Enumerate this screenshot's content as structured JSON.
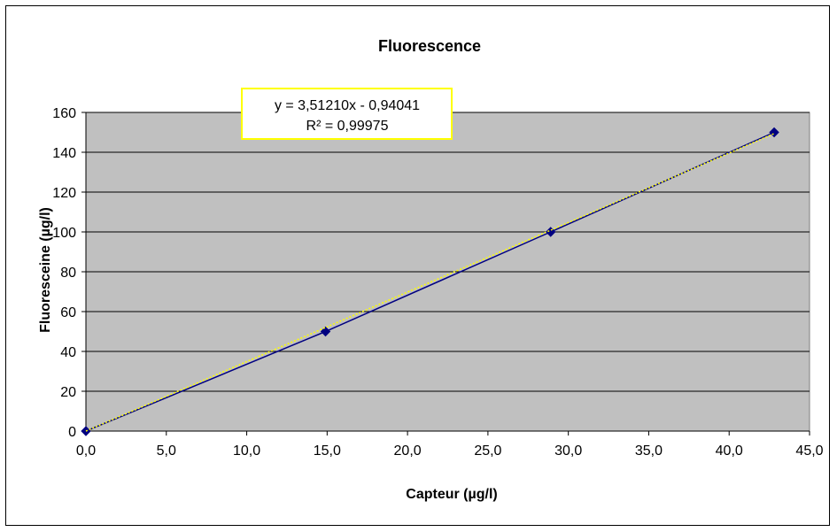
{
  "chart_data": {
    "type": "scatter",
    "title": "Fluorescence",
    "xlabel": "Capteur (µg/l)",
    "ylabel": "Fluoresceine (µg/l)",
    "xlim": [
      0,
      45
    ],
    "ylim": [
      0,
      160
    ],
    "x_ticks": [
      "0,0",
      "5,0",
      "10,0",
      "15,0",
      "20,0",
      "25,0",
      "30,0",
      "35,0",
      "40,0",
      "45,0"
    ],
    "y_ticks": [
      "0",
      "20",
      "40",
      "60",
      "80",
      "100",
      "120",
      "140",
      "160"
    ],
    "grid": "horizontal",
    "series": [
      {
        "x": [
          0.0,
          14.9,
          28.9,
          42.8
        ],
        "y": [
          0,
          50,
          100,
          150
        ],
        "color": "#000080",
        "marker": "diamond",
        "line": "solid"
      }
    ],
    "trendline": {
      "slope": 3.5121,
      "intercept": -0.94041,
      "color": "#ffff00",
      "style": "dotted",
      "equation": "y = 3,51210x - 0,94041",
      "r_squared": "R² = 0,99975",
      "label_border_color": "#ffff00"
    },
    "plot_background": "#c0c0c0"
  }
}
